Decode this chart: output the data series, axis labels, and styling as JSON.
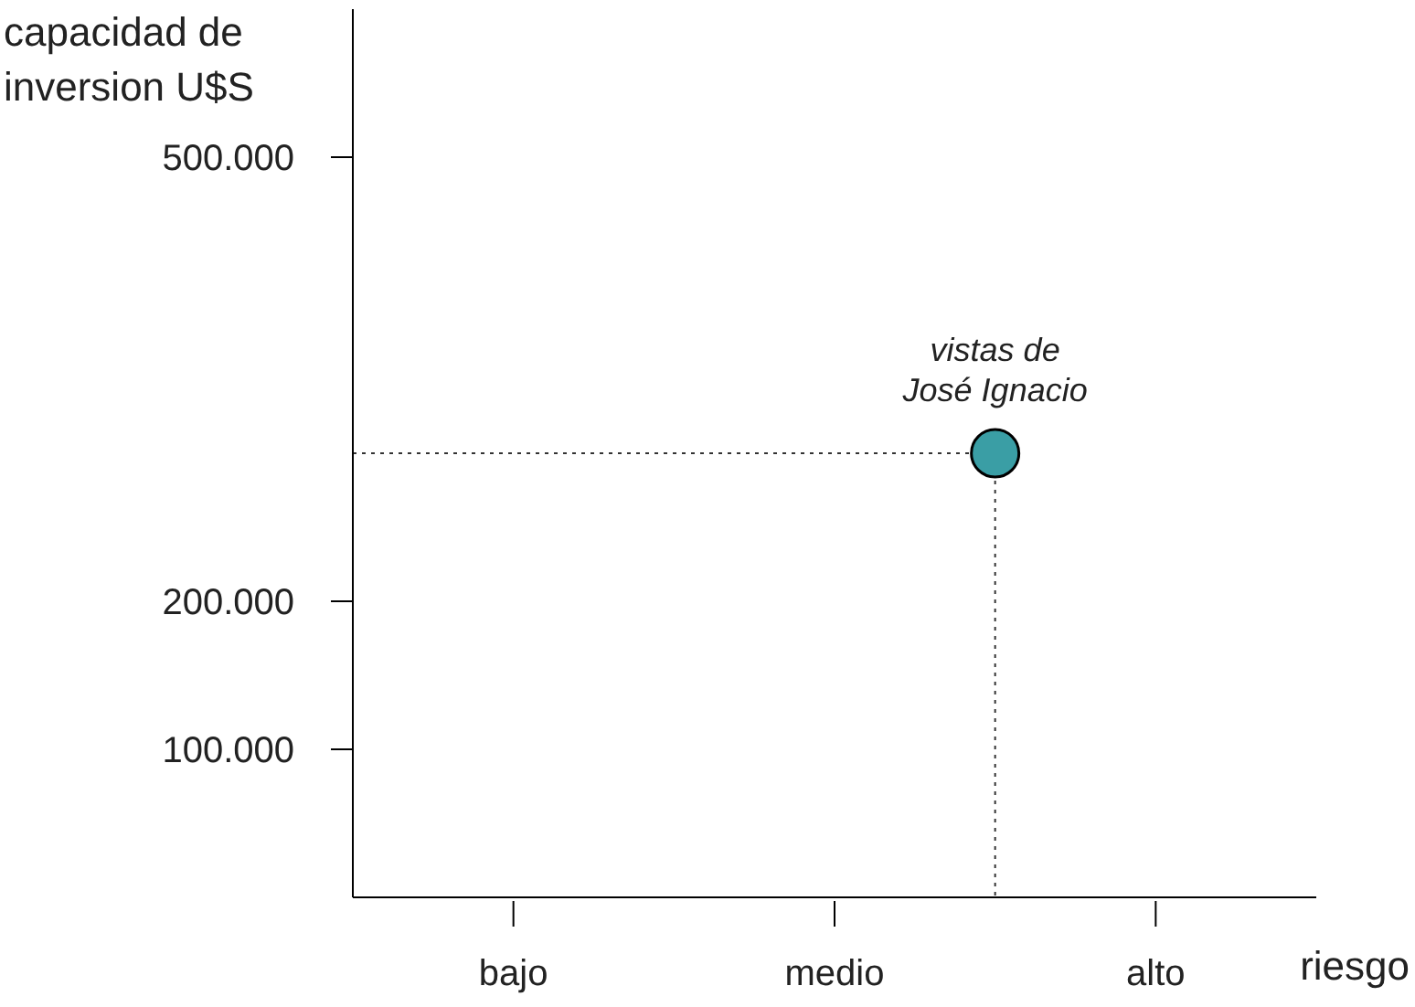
{
  "chart_data": {
    "type": "lollipop",
    "xlabel": "riesgo",
    "ylabel": "capacidad de inversion U$S",
    "categories": [
      null,
      "bajo",
      null,
      "medio",
      null,
      "alto",
      null
    ],
    "series": [
      {
        "name": "vistas de José Ignacio",
        "color": "#3a9ea5",
        "values": [
          null,
          null,
          null,
          null,
          300000,
          null,
          null
        ]
      }
    ],
    "ylim": [
      0,
      600000
    ],
    "yticks": [
      {
        "value": 100000,
        "label": "100.000"
      },
      {
        "value": 200000,
        "label": "200.000"
      },
      {
        "value": 500000,
        "label": "500.000"
      }
    ],
    "ref_lines": [
      {
        "axis": "y",
        "value": 300000,
        "line_style": "dotted"
      }
    ],
    "marker": "circle",
    "line_style": "dotted",
    "grid": false,
    "legend": false
  }
}
